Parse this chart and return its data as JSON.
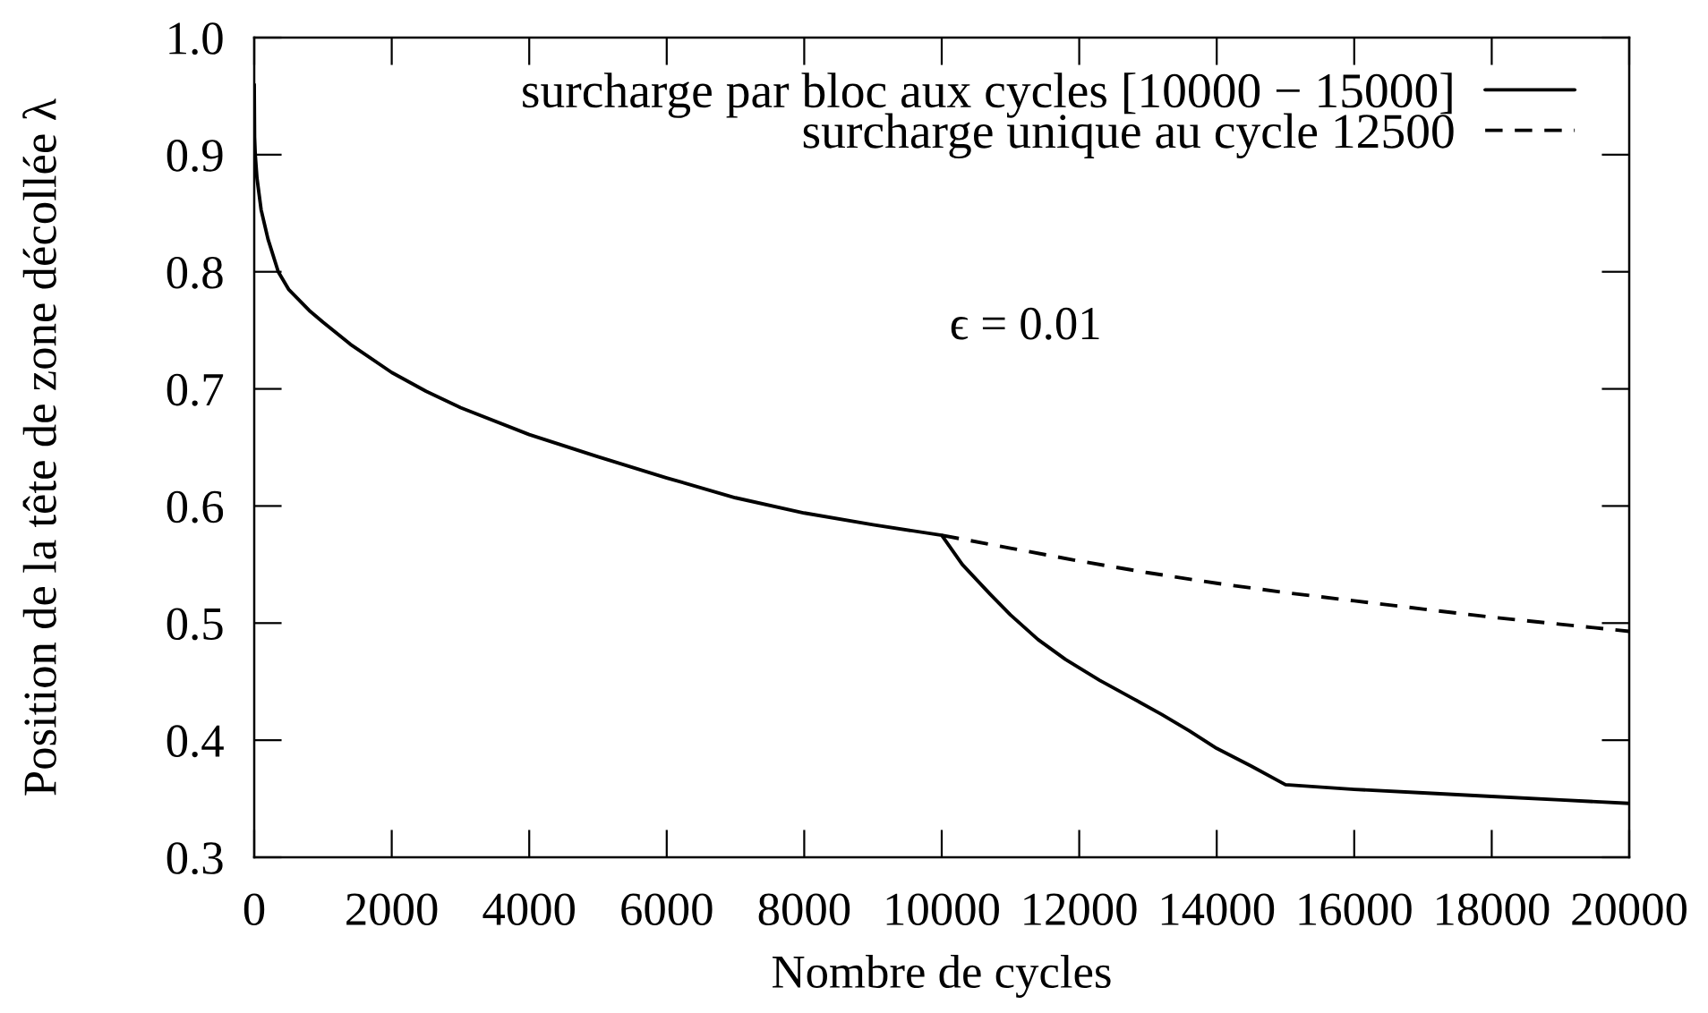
{
  "chart_data": {
    "type": "line",
    "xlabel": "Nombre de cycles",
    "ylabel": "Position de la tête de zone décollée λ",
    "annotations": [
      "ϵ = 0.01"
    ],
    "series": [
      {
        "name": "surcharge par bloc aux cycles [10000 − 15000]",
        "color": "#000000",
        "line_style": "solid",
        "x": [
          0,
          5,
          15,
          40,
          100,
          200,
          350,
          500,
          800,
          1000,
          1400,
          2000,
          2500,
          3000,
          4000,
          5000,
          6000,
          7000,
          8000,
          9000,
          10000,
          10300,
          10700,
          11000,
          11400,
          11800,
          12300,
          12800,
          13200,
          13600,
          14000,
          14500,
          15000,
          16000,
          17000,
          18000,
          19000,
          20000
        ],
        "values": [
          0.96,
          0.915,
          0.9,
          0.88,
          0.853,
          0.828,
          0.8,
          0.785,
          0.767,
          0.757,
          0.738,
          0.714,
          0.698,
          0.684,
          0.661,
          0.642,
          0.624,
          0.607,
          0.594,
          0.584,
          0.575,
          0.55,
          0.525,
          0.507,
          0.486,
          0.469,
          0.451,
          0.435,
          0.422,
          0.408,
          0.393,
          0.378,
          0.362,
          0.358,
          0.355,
          0.352,
          0.349,
          0.346
        ]
      },
      {
        "name": "surcharge unique au cycle 12500",
        "color": "#000000",
        "line_style": "dashed",
        "x": [
          10000,
          11000,
          12000,
          13000,
          14000,
          15000,
          16000,
          17000,
          18000,
          19000,
          20000
        ],
        "values": [
          0.575,
          0.564,
          0.553,
          0.543,
          0.534,
          0.526,
          0.519,
          0.512,
          0.505,
          0.499,
          0.493
        ]
      }
    ],
    "xlim": [
      0,
      20000
    ],
    "xticks": [
      0,
      2000,
      4000,
      6000,
      8000,
      10000,
      12000,
      14000,
      16000,
      18000,
      20000
    ],
    "ylim": [
      0.3,
      1.0
    ],
    "yticks": [
      0.3,
      0.4,
      0.5,
      0.6,
      0.7,
      0.8,
      0.9,
      {
        "value": 1.0,
        "label": "1.0"
      }
    ],
    "legend": "top right",
    "marker": "none",
    "grid": false
  }
}
